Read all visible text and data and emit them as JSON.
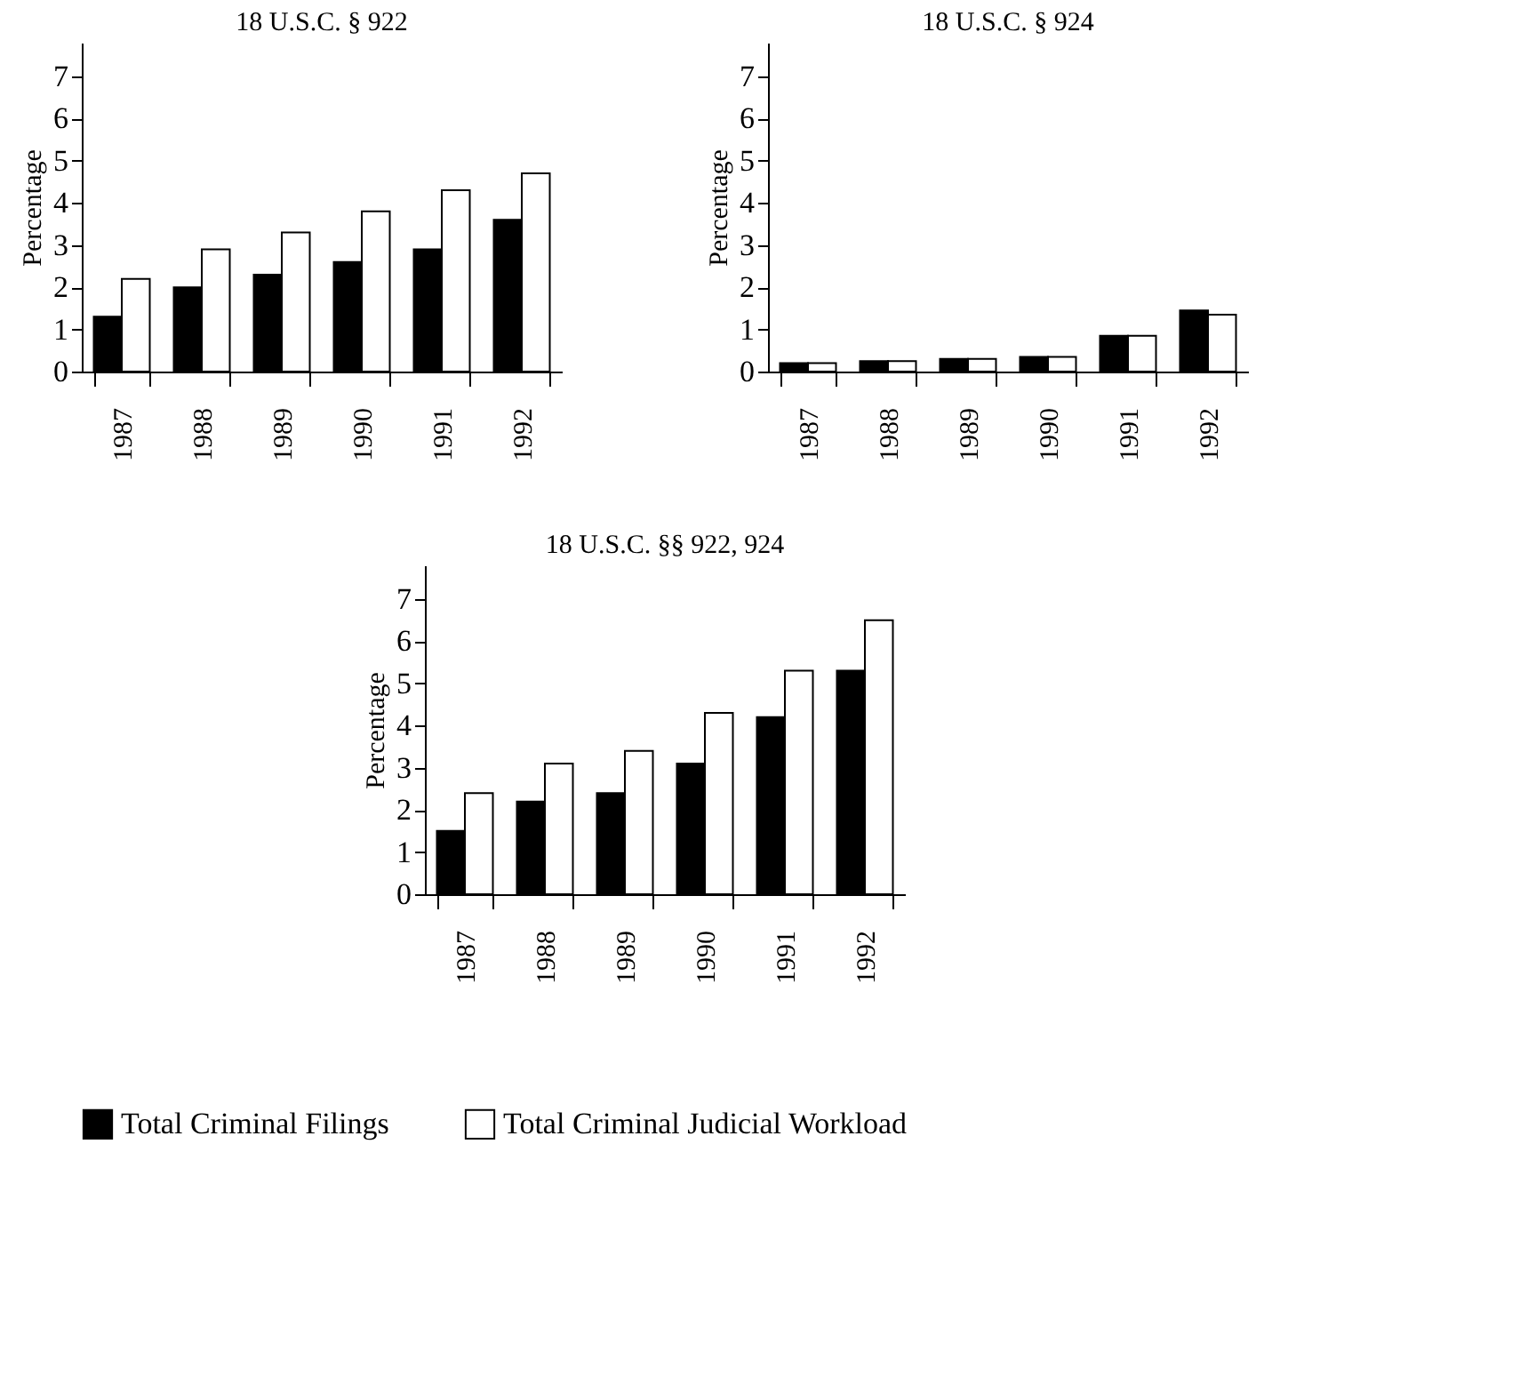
{
  "chart_data": [
    {
      "type": "bar",
      "title": "18 U.S.C. § 922",
      "ylabel": "Percentage",
      "categories": [
        "1987",
        "1988",
        "1989",
        "1990",
        "1991",
        "1992"
      ],
      "ylim": [
        0,
        7.8
      ],
      "yticks": [
        0,
        1,
        2,
        3,
        4,
        5,
        6,
        7
      ],
      "grid": false,
      "legend": "bottom",
      "series": [
        {
          "name": "Total Criminal Filings",
          "color": "#000000",
          "values": [
            1.3,
            2.0,
            2.3,
            2.6,
            2.9,
            3.6
          ]
        },
        {
          "name": "Total Criminal Judicial Workload",
          "color": "#ffffff",
          "values": [
            2.2,
            2.9,
            3.3,
            3.8,
            4.3,
            4.7
          ]
        }
      ]
    },
    {
      "type": "bar",
      "title": "18 U.S.C. § 924",
      "ylabel": "Percentage",
      "categories": [
        "1987",
        "1988",
        "1989",
        "1990",
        "1991",
        "1992"
      ],
      "ylim": [
        0,
        7.8
      ],
      "yticks": [
        0,
        1,
        2,
        3,
        4,
        5,
        6,
        7
      ],
      "grid": false,
      "legend": "bottom",
      "series": [
        {
          "name": "Total Criminal Filings",
          "color": "#000000",
          "values": [
            0.2,
            0.25,
            0.3,
            0.35,
            0.85,
            1.45
          ]
        },
        {
          "name": "Total Criminal Judicial Workload",
          "color": "#ffffff",
          "values": [
            0.2,
            0.25,
            0.3,
            0.35,
            0.85,
            1.35
          ]
        }
      ]
    },
    {
      "type": "bar",
      "title": "18 U.S.C. §§ 922, 924",
      "ylabel": "Percentage",
      "categories": [
        "1987",
        "1988",
        "1989",
        "1990",
        "1991",
        "1992"
      ],
      "ylim": [
        0,
        7.8
      ],
      "yticks": [
        0,
        1,
        2,
        3,
        4,
        5,
        6,
        7
      ],
      "grid": false,
      "legend": "bottom",
      "series": [
        {
          "name": "Total Criminal Filings",
          "color": "#000000",
          "values": [
            1.5,
            2.2,
            2.4,
            3.1,
            4.2,
            5.3
          ]
        },
        {
          "name": "Total Criminal Judicial Workload",
          "color": "#ffffff",
          "values": [
            2.4,
            3.1,
            3.4,
            4.3,
            5.3,
            6.5
          ]
        }
      ]
    }
  ]
}
